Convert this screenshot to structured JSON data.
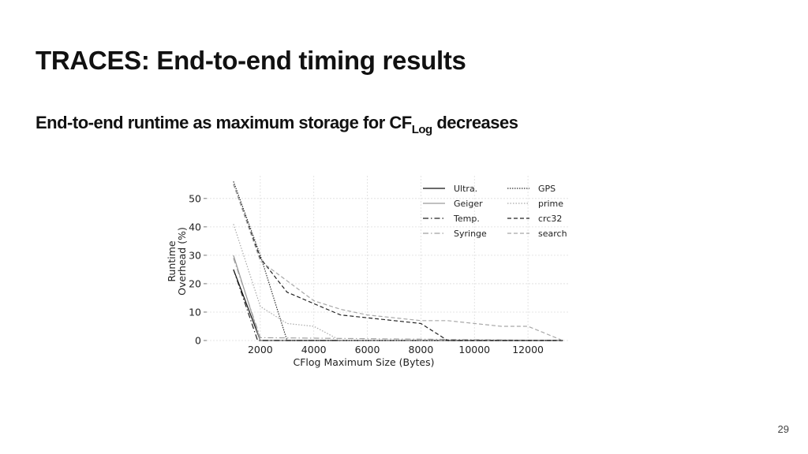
{
  "slide": {
    "title": "TRACES: End-to-end timing results",
    "subtitle_pre": "End-to-end runtime as maximum storage for CF",
    "subtitle_sub": "Log",
    "subtitle_post": " decreases",
    "page_number": "29"
  },
  "chart_data": {
    "type": "line",
    "title": "",
    "xlabel": "CFlog Maximum Size (Bytes)",
    "ylabel_line1": "Runtime",
    "ylabel_line2": "Overhead (%)",
    "xlim": [
      0,
      13500
    ],
    "ylim": [
      0,
      58
    ],
    "xticks": [
      2000,
      4000,
      6000,
      8000,
      10000,
      12000
    ],
    "yticks": [
      0,
      10,
      20,
      30,
      40,
      50
    ],
    "legend_position": "top-right",
    "series": [
      {
        "name": "Ultra.",
        "color": "#111111",
        "dash": "",
        "width": 1.2,
        "x": [
          1000,
          2000,
          13300
        ],
        "y": [
          25,
          0,
          0
        ]
      },
      {
        "name": "Geiger",
        "color": "#9a9a9a",
        "dash": "",
        "width": 1.2,
        "x": [
          1000,
          2000,
          13300
        ],
        "y": [
          30,
          0,
          0
        ]
      },
      {
        "name": "Temp.",
        "color": "#222222",
        "dash": "7 3 1.5 3",
        "width": 1.2,
        "x": [
          1000,
          1900,
          13300
        ],
        "y": [
          25,
          0,
          0
        ]
      },
      {
        "name": "Syringe",
        "color": "#a0a0a0",
        "dash": "7 3 1.5 3",
        "width": 1.2,
        "x": [
          1000,
          2000,
          13300
        ],
        "y": [
          29,
          1,
          0
        ]
      },
      {
        "name": "GPS",
        "color": "#333333",
        "dash": "1.5 1.5",
        "width": 1.2,
        "x": [
          1000,
          2000,
          3000,
          13300
        ],
        "y": [
          56,
          30,
          0,
          0
        ]
      },
      {
        "name": "prime",
        "color": "#a8a8a8",
        "dash": "1.5 2",
        "width": 1.2,
        "x": [
          1000,
          2000,
          3000,
          4000,
          5000,
          13300
        ],
        "y": [
          41,
          12,
          6,
          5,
          0,
          0
        ]
      },
      {
        "name": "crc32",
        "color": "#222222",
        "dash": "5 3",
        "width": 1.2,
        "x": [
          1000,
          2000,
          3000,
          4000,
          5000,
          6000,
          7000,
          8000,
          9000,
          13300
        ],
        "y": [
          55,
          29,
          17,
          13,
          9,
          8,
          7,
          6,
          0,
          0
        ]
      },
      {
        "name": "search",
        "color": "#a8a8a8",
        "dash": "5 3",
        "width": 1.2,
        "x": [
          1000,
          2000,
          3000,
          4000,
          5000,
          6000,
          7000,
          8000,
          9000,
          10000,
          11000,
          12000,
          13300
        ],
        "y": [
          55,
          28,
          21,
          14,
          11,
          9,
          8,
          7,
          7,
          6,
          5,
          5,
          0
        ]
      }
    ]
  }
}
